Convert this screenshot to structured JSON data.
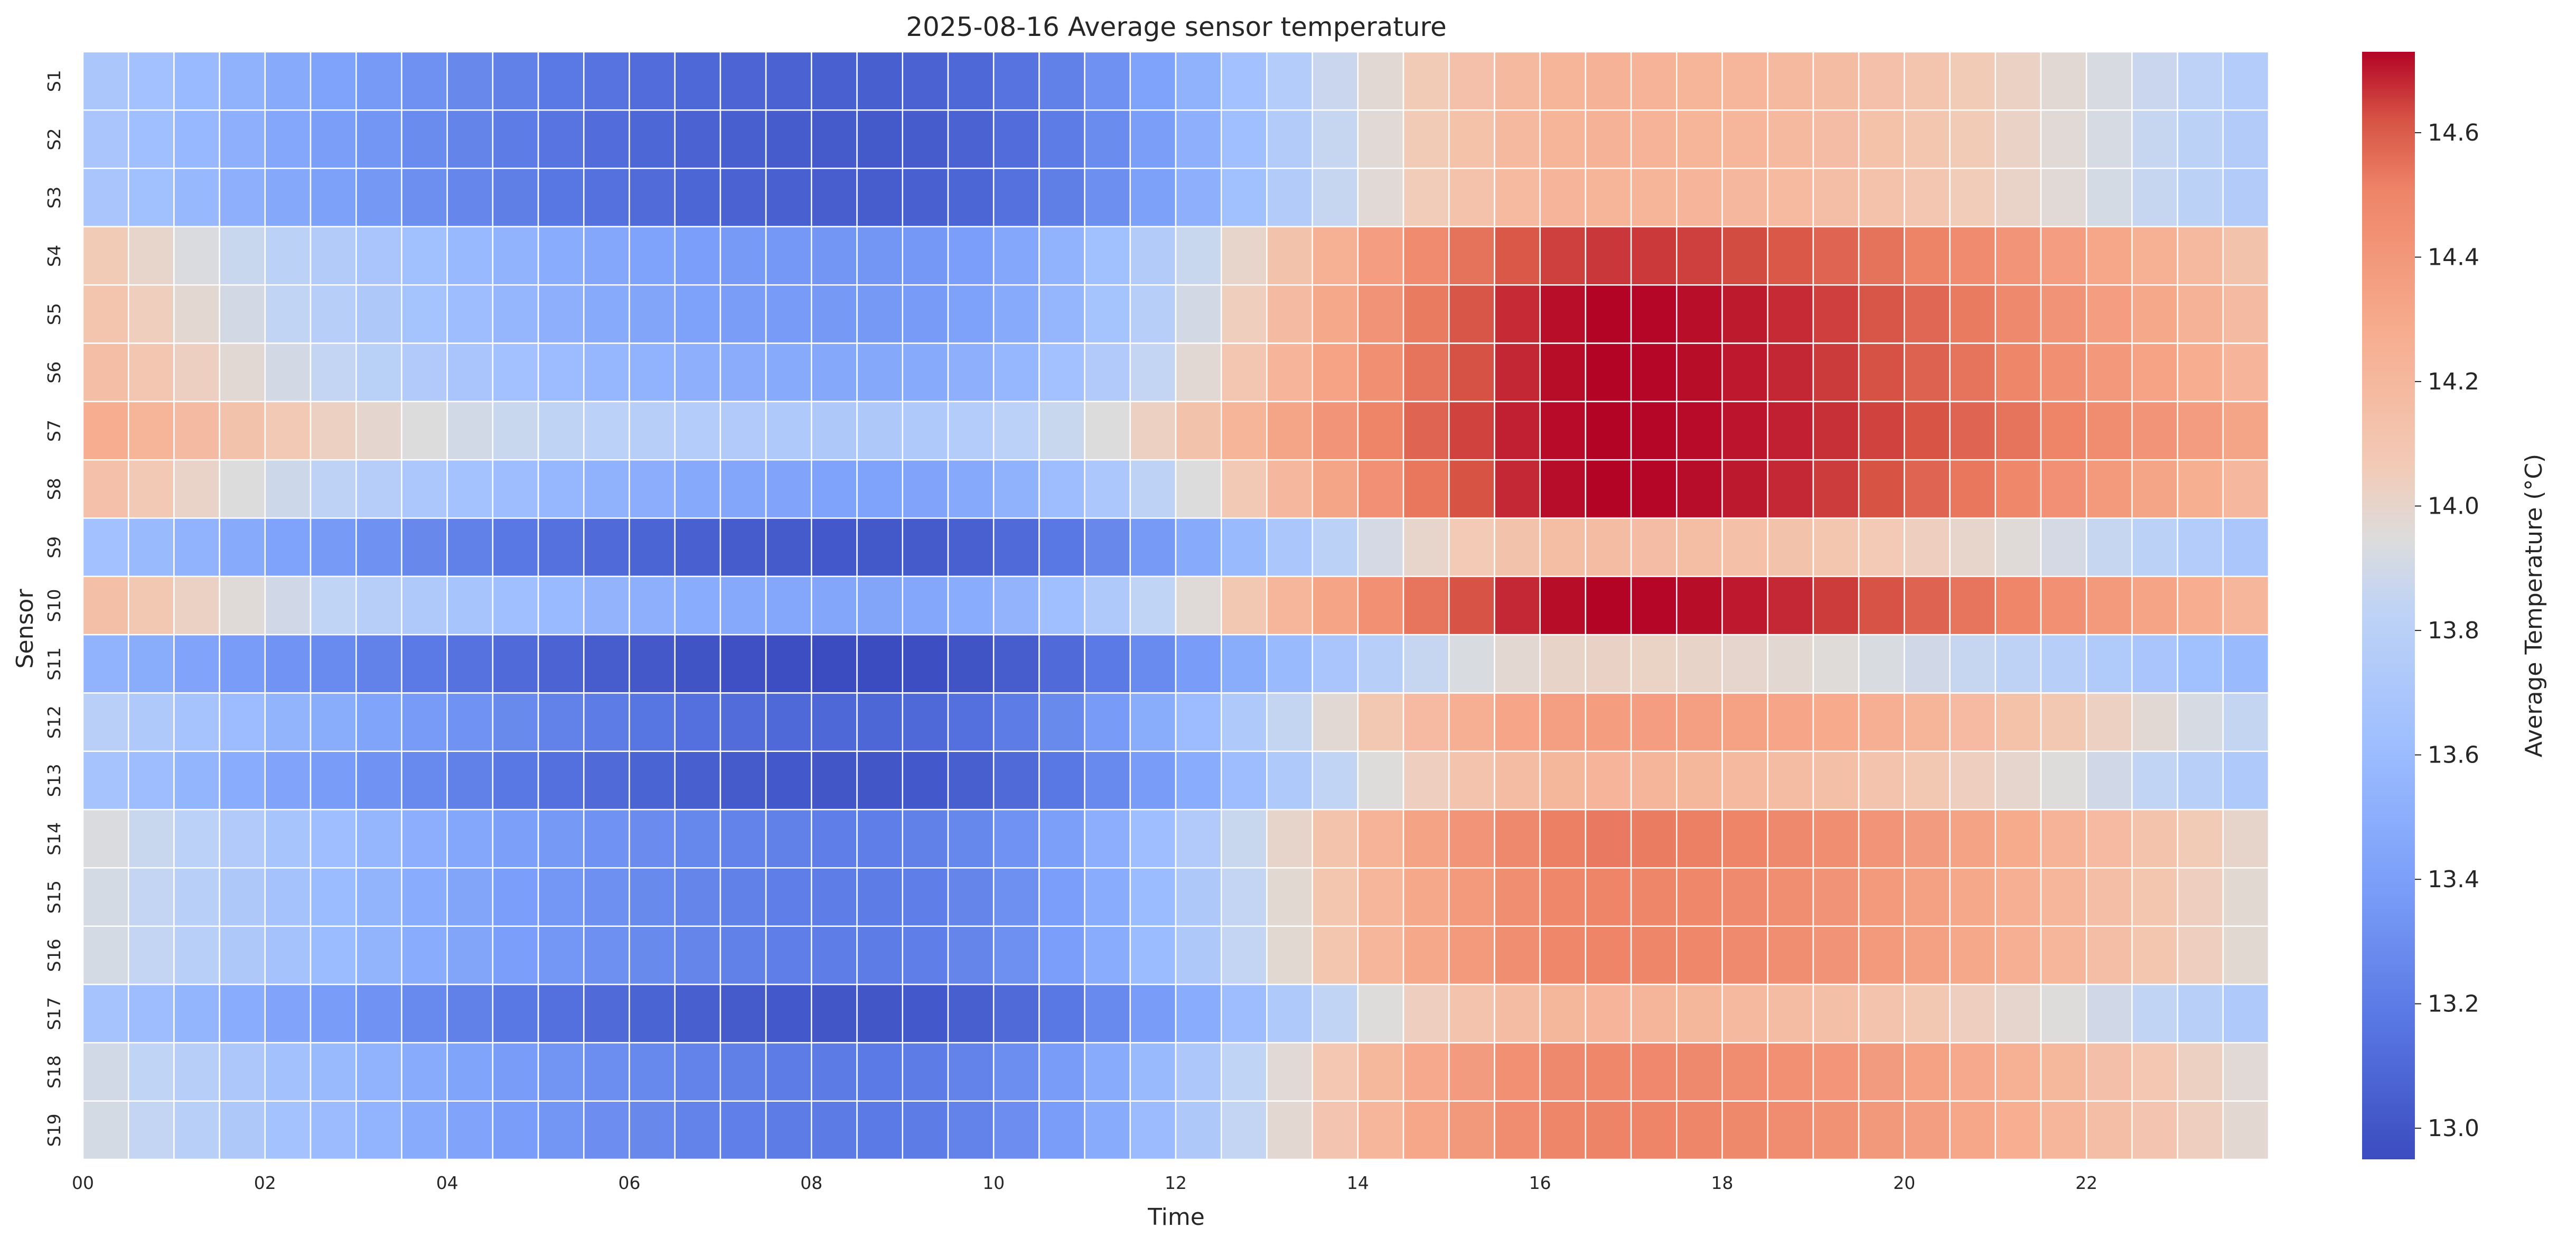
{
  "chart_data": {
    "type": "heatmap",
    "title": "2025-08-16 Average sensor temperature",
    "xlabel": "Time",
    "ylabel": "Sensor",
    "colorbar_label": "Average Temperature (°C)",
    "colormap": "coolwarm",
    "vmin": 12.95,
    "vmax": 14.73,
    "colorbar_ticks": [
      "13.0",
      "13.2",
      "13.4",
      "13.6",
      "13.8",
      "14.0",
      "14.2",
      "14.4",
      "14.6"
    ],
    "x_tick_labels": [
      "00",
      "02",
      "04",
      "06",
      "08",
      "10",
      "12",
      "14",
      "16",
      "18",
      "20",
      "22"
    ],
    "x_bins": [
      "00:00",
      "00:30",
      "01:00",
      "01:30",
      "02:00",
      "02:30",
      "03:00",
      "03:30",
      "04:00",
      "04:30",
      "05:00",
      "05:30",
      "06:00",
      "06:30",
      "07:00",
      "07:30",
      "08:00",
      "08:30",
      "09:00",
      "09:30",
      "10:00",
      "10:30",
      "11:00",
      "11:30",
      "12:00",
      "12:30",
      "13:00",
      "13:30",
      "14:00",
      "14:30",
      "15:00",
      "15:30",
      "16:00",
      "16:30",
      "17:00",
      "17:30",
      "18:00",
      "18:30",
      "19:00",
      "19:30",
      "20:00",
      "20:30",
      "21:00",
      "21:30",
      "22:00",
      "22:30",
      "23:00",
      "23:30"
    ],
    "y_categories": [
      "S1",
      "S2",
      "S3",
      "S4",
      "S5",
      "S6",
      "S7",
      "S8",
      "S9",
      "S10",
      "S11",
      "S12",
      "S13",
      "S14",
      "S15",
      "S16",
      "S17",
      "S18",
      "S19"
    ],
    "rows": [
      {
        "sensor": "S1",
        "min": 13.05,
        "max": 14.24,
        "last": 13.87
      },
      {
        "sensor": "S2",
        "min": 13.02,
        "max": 14.24,
        "last": 13.7
      },
      {
        "sensor": "S3",
        "min": 13.04,
        "max": 14.23,
        "last": 13.78
      },
      {
        "sensor": "S4",
        "min": 13.34,
        "max": 14.66,
        "last": 14.08
      },
      {
        "sensor": "S5",
        "min": 13.36,
        "max": 14.73,
        "last": 14.12
      },
      {
        "sensor": "S6",
        "min": 13.46,
        "max": 14.73,
        "last": 14.2
      },
      {
        "sensor": "S7",
        "min": 13.72,
        "max": 14.73,
        "last": 14.36
      },
      {
        "sensor": "S8",
        "min": 13.42,
        "max": 14.73,
        "last": 14.14
      },
      {
        "sensor": "S9",
        "min": 13.01,
        "max": 14.17,
        "last": 13.72
      },
      {
        "sensor": "S10",
        "min": 13.44,
        "max": 14.73,
        "last": 14.09
      },
      {
        "sensor": "S11",
        "min": 12.95,
        "max": 14.02,
        "last": 13.47
      },
      {
        "sensor": "S12",
        "min": 13.09,
        "max": 14.37,
        "last": 13.85
      },
      {
        "sensor": "S13",
        "min": 13.0,
        "max": 14.22,
        "last": 13.71
      },
      {
        "sensor": "S14",
        "min": 13.21,
        "max": 14.53,
        "last": 13.99
      },
      {
        "sensor": "S15",
        "min": 13.2,
        "max": 14.5,
        "last": 13.98
      },
      {
        "sensor": "S16",
        "min": 13.2,
        "max": 14.5,
        "last": 13.98
      },
      {
        "sensor": "S17",
        "min": 13.0,
        "max": 14.22,
        "last": 13.72
      },
      {
        "sensor": "S18",
        "min": 13.19,
        "max": 14.49,
        "last": 13.96
      },
      {
        "sensor": "S19",
        "min": 13.19,
        "max": 14.51,
        "last": 13.97
      }
    ],
    "grid": true,
    "legend": "colorbar-right"
  }
}
